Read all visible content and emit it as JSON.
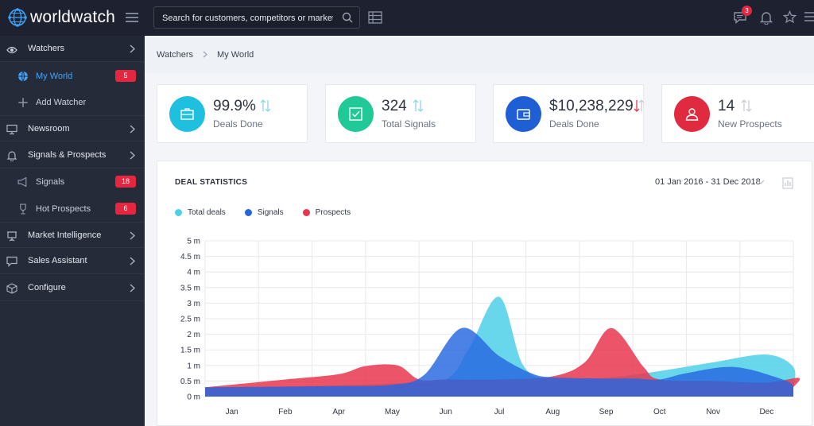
{
  "header": {
    "brand": "worldwatch",
    "search_placeholder": "Search for customers, competitors or markets",
    "notifications_count": "3"
  },
  "sidebar": {
    "items": [
      {
        "label": "Watchers"
      },
      {
        "label": "My World",
        "badge": "5"
      },
      {
        "label": "Add Watcher"
      },
      {
        "label": "Newsroom"
      },
      {
        "label": "Signals & Prospects"
      },
      {
        "label": "Signals",
        "badge": "18"
      },
      {
        "label": "Hot Prospects",
        "badge": "6"
      },
      {
        "label": "Market Intelligence"
      },
      {
        "label": "Sales Assistant"
      },
      {
        "label": "Configure"
      }
    ]
  },
  "breadcrumb": {
    "root": "Watchers",
    "current": "My World"
  },
  "stats": [
    {
      "value": "99.9%",
      "label": "Deals Done",
      "color": "#1fbfe0",
      "icon": "briefcase-icon"
    },
    {
      "value": "324",
      "label": "Total Signals",
      "color": "#20c997",
      "icon": "checkbox-icon"
    },
    {
      "value": "$10,238,229",
      "label": "Deals Done",
      "color": "#1f5fd6",
      "icon": "wallet-icon"
    },
    {
      "value": "14",
      "label": "New Prospects",
      "color": "#e02a3f",
      "icon": "user-icon"
    }
  ],
  "panel": {
    "title": "DEAL STATISTICS",
    "date_range": "01 Jan 2016 - 31 Dec 2018"
  },
  "chart_data": {
    "type": "area",
    "categories": [
      "Jan",
      "Feb",
      "Apr",
      "May",
      "Jun",
      "Jul",
      "Aug",
      "Sep",
      "Oct",
      "Nov",
      "Dec"
    ],
    "y_ticks": [
      "0 m",
      "0.5 m",
      "1 m",
      "1.5 m",
      "2 m",
      "2.5 m",
      "3 m",
      "3.5 m",
      "4 m",
      "4.5 m",
      "5 m"
    ],
    "ylim": [
      0,
      5
    ],
    "grid": true,
    "legend_position": "top-left",
    "series": [
      {
        "name": "Total deals",
        "color": "#4fd0e8",
        "points": [
          [
            0,
            0.3
          ],
          [
            1,
            0.33
          ],
          [
            2,
            0.36
          ],
          [
            3,
            0.42
          ],
          [
            4,
            0.55
          ],
          [
            4.45,
            1.6
          ],
          [
            5,
            3.2
          ],
          [
            5.45,
            1.0
          ],
          [
            6,
            0.55
          ],
          [
            7,
            0.6
          ],
          [
            8,
            0.82
          ],
          [
            9,
            1.1
          ],
          [
            10,
            1.35
          ],
          [
            10.5,
            0.95
          ],
          [
            11,
            0.25
          ]
        ]
      },
      {
        "name": "Signals",
        "color": "#2466e0",
        "points": [
          [
            0,
            0.3
          ],
          [
            1,
            0.32
          ],
          [
            2,
            0.34
          ],
          [
            3,
            0.38
          ],
          [
            3.6,
            0.7
          ],
          [
            4.3,
            2.2
          ],
          [
            5,
            1.3
          ],
          [
            5.6,
            0.75
          ],
          [
            6,
            0.62
          ],
          [
            7,
            0.58
          ],
          [
            7.5,
            0.58
          ],
          [
            8,
            0.55
          ],
          [
            8.5,
            0.75
          ],
          [
            9.4,
            0.95
          ],
          [
            10.3,
            0.55
          ],
          [
            11,
            0.35
          ]
        ]
      },
      {
        "name": "Prospects",
        "color": "#e8364f",
        "points": [
          [
            0,
            0.3
          ],
          [
            1,
            0.55
          ],
          [
            2,
            0.72
          ],
          [
            2.5,
            0.98
          ],
          [
            3.1,
            1.0
          ],
          [
            3.5,
            0.55
          ],
          [
            4,
            0.55
          ],
          [
            5,
            0.55
          ],
          [
            6,
            0.65
          ],
          [
            6.6,
            1.1
          ],
          [
            7.1,
            2.2
          ],
          [
            7.7,
            0.95
          ],
          [
            8,
            0.55
          ],
          [
            9,
            0.5
          ],
          [
            10,
            0.45
          ],
          [
            10.6,
            0.6
          ],
          [
            11,
            0.3
          ]
        ]
      }
    ]
  }
}
